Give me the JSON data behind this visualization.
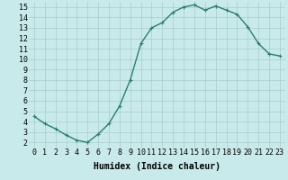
{
  "x": [
    0,
    1,
    2,
    3,
    4,
    5,
    6,
    7,
    8,
    9,
    10,
    11,
    12,
    13,
    14,
    15,
    16,
    17,
    18,
    19,
    20,
    21,
    22,
    23
  ],
  "y": [
    4.5,
    3.8,
    3.3,
    2.7,
    2.2,
    2.0,
    2.8,
    3.8,
    5.5,
    8.0,
    11.5,
    13.0,
    13.5,
    14.5,
    15.0,
    15.2,
    14.7,
    15.1,
    14.7,
    14.3,
    13.1,
    11.5,
    10.5,
    10.3
  ],
  "line_color": "#2e7d6e",
  "marker": "+",
  "bg_color": "#c8eaea",
  "grid_color": "#a8cccc",
  "xlabel": "Humidex (Indice chaleur)",
  "xlim": [
    -0.5,
    23.5
  ],
  "ylim": [
    1.5,
    15.5
  ],
  "yticks": [
    2,
    3,
    4,
    5,
    6,
    7,
    8,
    9,
    10,
    11,
    12,
    13,
    14,
    15
  ],
  "xticks": [
    0,
    1,
    2,
    3,
    4,
    5,
    6,
    7,
    8,
    9,
    10,
    11,
    12,
    13,
    14,
    15,
    16,
    17,
    18,
    19,
    20,
    21,
    22,
    23
  ],
  "xlabel_fontsize": 7,
  "tick_fontsize": 6,
  "line_width": 1.0,
  "marker_size": 3,
  "marker_ew": 0.8
}
